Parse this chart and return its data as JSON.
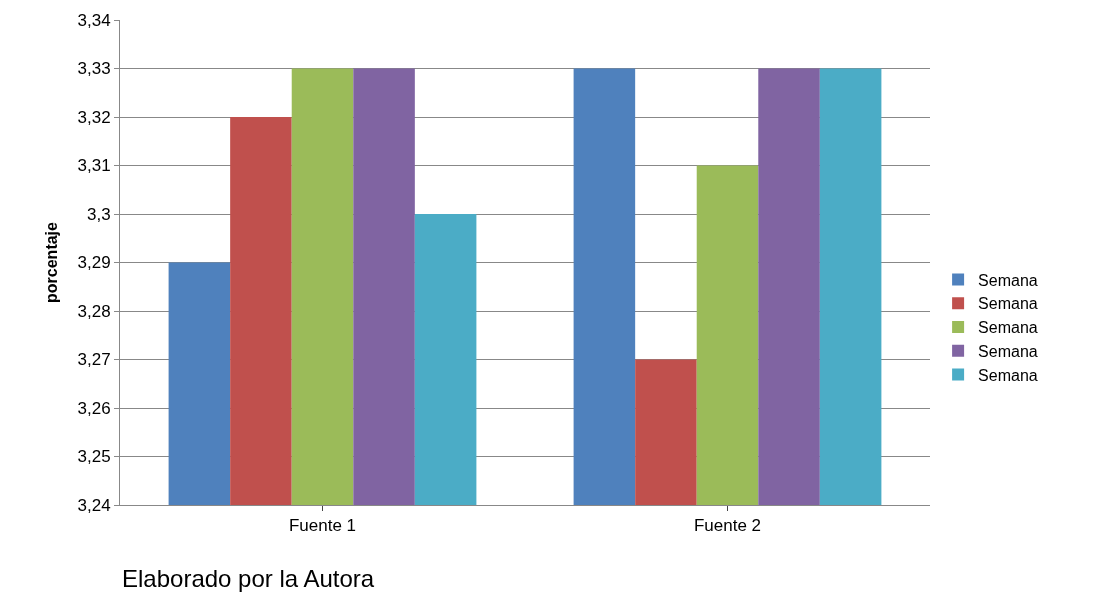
{
  "chart_data": {
    "type": "bar",
    "ylabel": "porcentaje",
    "categories": [
      "Fuente 1",
      "Fuente 2"
    ],
    "series": [
      {
        "name": "Semana",
        "color": "#4f81bd",
        "values": [
          3.29,
          3.33
        ]
      },
      {
        "name": "Semana",
        "color": "#c0504d",
        "values": [
          3.32,
          3.27
        ]
      },
      {
        "name": "Semana",
        "color": "#9bbb59",
        "values": [
          3.33,
          3.31
        ]
      },
      {
        "name": "Semana",
        "color": "#8064a2",
        "values": [
          3.33,
          3.33
        ]
      },
      {
        "name": "Semana",
        "color": "#4bacc6",
        "values": [
          3.3,
          3.33
        ]
      }
    ],
    "ylim": [
      3.24,
      3.34
    ],
    "yticks": [
      {
        "value": 3.24,
        "label": "3,24"
      },
      {
        "value": 3.25,
        "label": "3,25"
      },
      {
        "value": 3.26,
        "label": "3,26"
      },
      {
        "value": 3.27,
        "label": "3,27"
      },
      {
        "value": 3.28,
        "label": "3,28"
      },
      {
        "value": 3.29,
        "label": "3,29"
      },
      {
        "value": 3.3,
        "label": "3,3"
      },
      {
        "value": 3.31,
        "label": "3,31"
      },
      {
        "value": 3.32,
        "label": "3,32"
      },
      {
        "value": 3.33,
        "label": "3,33"
      },
      {
        "value": 3.34,
        "label": "3,34"
      }
    ],
    "grid": "y",
    "legend": "right",
    "annotations": [
      "Elaborado por la Autora"
    ]
  }
}
